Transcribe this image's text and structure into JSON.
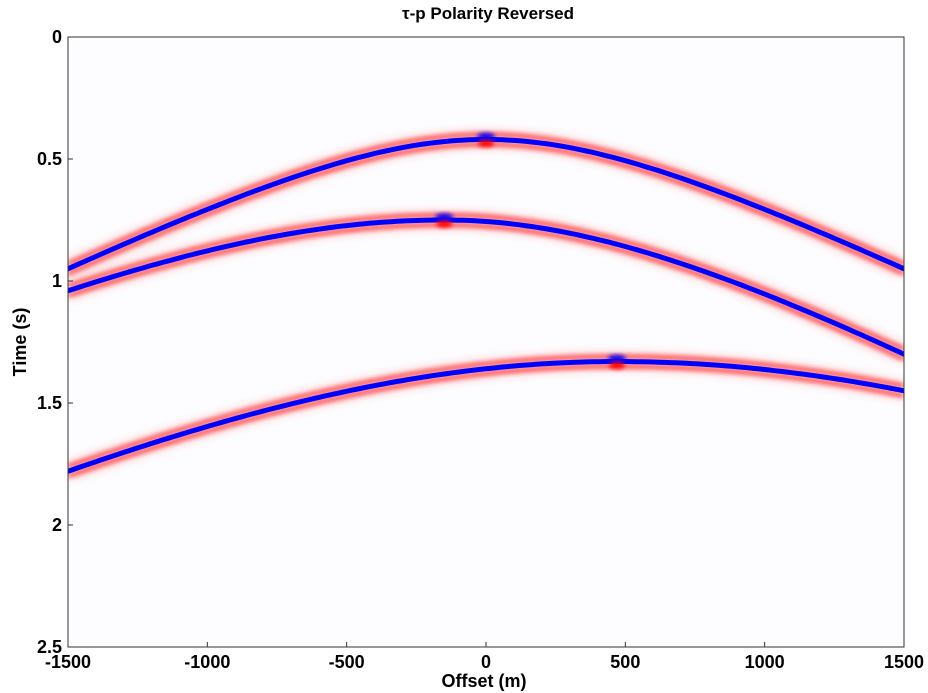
{
  "chart_data": {
    "type": "heatmap",
    "title": "τ-p Polarity Reversed",
    "xlabel": "Offset (m)",
    "ylabel": "Time (s)",
    "xlim": [
      -1500,
      1500
    ],
    "ylim": [
      0,
      2.5
    ],
    "y_inverted": true,
    "x_ticks": [
      -1500,
      -1000,
      -500,
      0,
      500,
      1000,
      1500
    ],
    "x_tick_labels": [
      "-1500",
      "-1000",
      "-500",
      "0",
      "500",
      "1000",
      "1500"
    ],
    "y_ticks": [
      0,
      0.5,
      1,
      1.5,
      2,
      2.5
    ],
    "y_tick_labels": [
      "0",
      "0.5",
      "1",
      "1.5",
      "2",
      "2.5"
    ],
    "grid": false,
    "colors": {
      "positive": "#ff0000",
      "negative": "#0000ff",
      "zero": "#ffffff"
    },
    "series": [
      {
        "apex_offset": 0,
        "apex_time": 0.42,
        "endpoints": [
          [
            -1500,
            0.95
          ],
          [
            1500,
            0.95
          ]
        ]
      },
      {
        "apex_offset": -150,
        "apex_time": 0.75,
        "endpoints": [
          [
            -1500,
            1.04
          ],
          [
            1500,
            1.3
          ]
        ]
      },
      {
        "apex_offset": 470,
        "apex_time": 1.33,
        "endpoints": [
          [
            -1500,
            1.78
          ],
          [
            1500,
            1.45
          ]
        ]
      }
    ]
  }
}
